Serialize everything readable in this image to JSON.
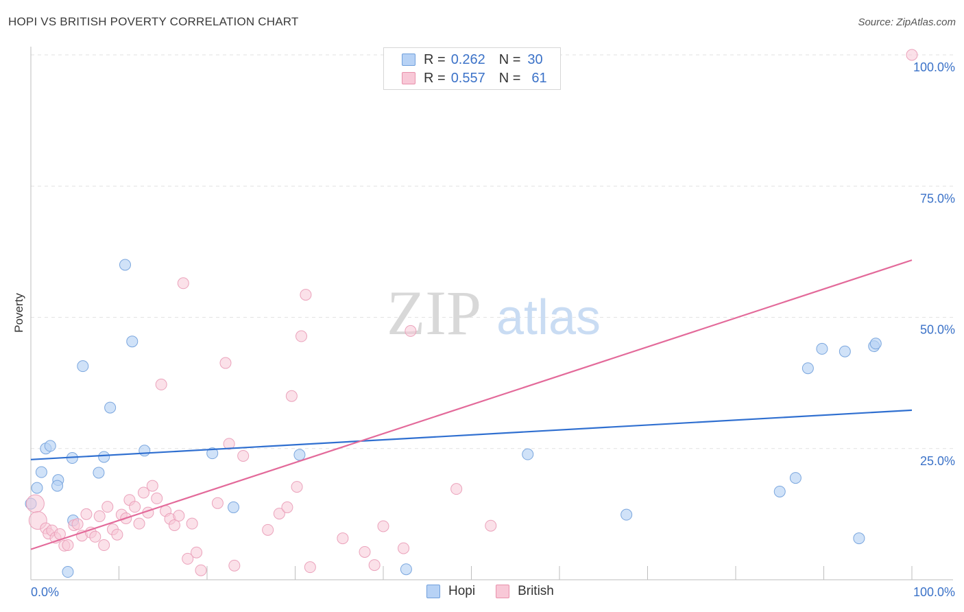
{
  "header": {
    "title": "HOPI VS BRITISH POVERTY CORRELATION CHART",
    "source": "Source: ZipAtlas.com"
  },
  "watermark": {
    "zip": "ZIP",
    "atlas": "atlas"
  },
  "legend": {
    "r_label": "R =",
    "n_label": "N =",
    "rows": [
      {
        "series": "Hopi",
        "r": "0.262",
        "n": "30",
        "fill": "#b7d2f5",
        "stroke": "#6f9fdc"
      },
      {
        "series": "British",
        "r": "0.557",
        "n": "61",
        "fill": "#f8c8d7",
        "stroke": "#e890ab"
      }
    ]
  },
  "chart_data": {
    "type": "scatter",
    "xlabel": "",
    "ylabel": "Poverty",
    "xlim": [
      0,
      100
    ],
    "ylim": [
      0,
      100
    ],
    "x_tick_labels": [
      "0.0%",
      "100.0%"
    ],
    "y_tick_labels": [
      "25.0%",
      "50.0%",
      "75.0%",
      "100.0%"
    ],
    "y_ticks": [
      25,
      50,
      75,
      100
    ],
    "grid": true,
    "legend_position": "top-center",
    "colors": {
      "hopi_line": "#2f6fd0",
      "british_line": "#e36a9a",
      "tick_text": "#3b72c8"
    },
    "series": [
      {
        "name": "Hopi",
        "trend": [
          [
            0,
            22.9
          ],
          [
            100,
            32.3
          ]
        ],
        "points": [
          [
            0.0,
            14.5
          ],
          [
            0.7,
            17.5
          ],
          [
            1.2,
            20.5
          ],
          [
            1.7,
            25.0
          ],
          [
            2.2,
            25.5
          ],
          [
            3.1,
            19.0
          ],
          [
            3.0,
            17.9
          ],
          [
            4.7,
            23.2
          ],
          [
            5.9,
            40.7
          ],
          [
            4.8,
            11.3
          ],
          [
            7.7,
            20.4
          ],
          [
            8.3,
            23.4
          ],
          [
            9.0,
            32.8
          ],
          [
            10.7,
            60.0
          ],
          [
            11.5,
            45.4
          ],
          [
            12.9,
            24.6
          ],
          [
            20.6,
            24.1
          ],
          [
            23.0,
            13.8
          ],
          [
            30.5,
            23.8
          ],
          [
            42.6,
            2.0
          ],
          [
            56.4,
            23.9
          ],
          [
            67.6,
            12.4
          ],
          [
            85.0,
            16.8
          ],
          [
            86.8,
            19.4
          ],
          [
            88.2,
            40.3
          ],
          [
            89.8,
            44.0
          ],
          [
            92.4,
            43.5
          ],
          [
            94.0,
            7.9
          ],
          [
            95.7,
            44.5
          ],
          [
            95.9,
            45.0
          ]
        ],
        "extra_points": [
          [
            4.2,
            1.5
          ]
        ]
      },
      {
        "name": "British",
        "trend": [
          [
            0,
            5.8
          ],
          [
            100,
            60.9
          ]
        ],
        "points": [
          [
            0.5,
            14.5
          ],
          [
            0.8,
            11.3
          ],
          [
            1.7,
            9.8
          ],
          [
            2.0,
            8.8
          ],
          [
            2.4,
            9.4
          ],
          [
            2.8,
            8.0
          ],
          [
            3.3,
            8.7
          ],
          [
            3.8,
            6.5
          ],
          [
            4.2,
            6.6
          ],
          [
            4.9,
            10.4
          ],
          [
            5.3,
            10.6
          ],
          [
            5.8,
            8.4
          ],
          [
            6.3,
            12.5
          ],
          [
            6.8,
            9.0
          ],
          [
            7.3,
            8.2
          ],
          [
            7.8,
            12.1
          ],
          [
            8.3,
            6.6
          ],
          [
            8.7,
            13.9
          ],
          [
            9.3,
            9.6
          ],
          [
            9.8,
            8.6
          ],
          [
            10.3,
            12.4
          ],
          [
            10.8,
            11.7
          ],
          [
            11.2,
            15.2
          ],
          [
            11.8,
            13.9
          ],
          [
            12.3,
            10.7
          ],
          [
            12.8,
            16.6
          ],
          [
            13.3,
            12.8
          ],
          [
            13.8,
            17.9
          ],
          [
            14.3,
            15.5
          ],
          [
            14.8,
            37.2
          ],
          [
            15.3,
            13.1
          ],
          [
            15.8,
            11.6
          ],
          [
            16.3,
            10.4
          ],
          [
            16.8,
            12.2
          ],
          [
            17.3,
            56.5
          ],
          [
            17.8,
            4.0
          ],
          [
            18.3,
            10.7
          ],
          [
            18.8,
            5.2
          ],
          [
            19.3,
            1.8
          ],
          [
            21.2,
            14.6
          ],
          [
            22.1,
            41.3
          ],
          [
            22.5,
            25.9
          ],
          [
            23.1,
            2.7
          ],
          [
            24.1,
            23.6
          ],
          [
            26.9,
            9.5
          ],
          [
            28.2,
            12.6
          ],
          [
            29.1,
            13.8
          ],
          [
            29.6,
            35.0
          ],
          [
            30.2,
            17.7
          ],
          [
            30.7,
            46.4
          ],
          [
            31.2,
            54.3
          ],
          [
            31.7,
            2.4
          ],
          [
            35.4,
            7.9
          ],
          [
            37.9,
            5.3
          ],
          [
            39.0,
            2.8
          ],
          [
            40.0,
            10.2
          ],
          [
            42.3,
            6.0
          ],
          [
            43.1,
            47.4
          ],
          [
            48.3,
            17.3
          ],
          [
            52.2,
            10.3
          ],
          [
            100.0,
            100.0
          ]
        ]
      }
    ]
  }
}
